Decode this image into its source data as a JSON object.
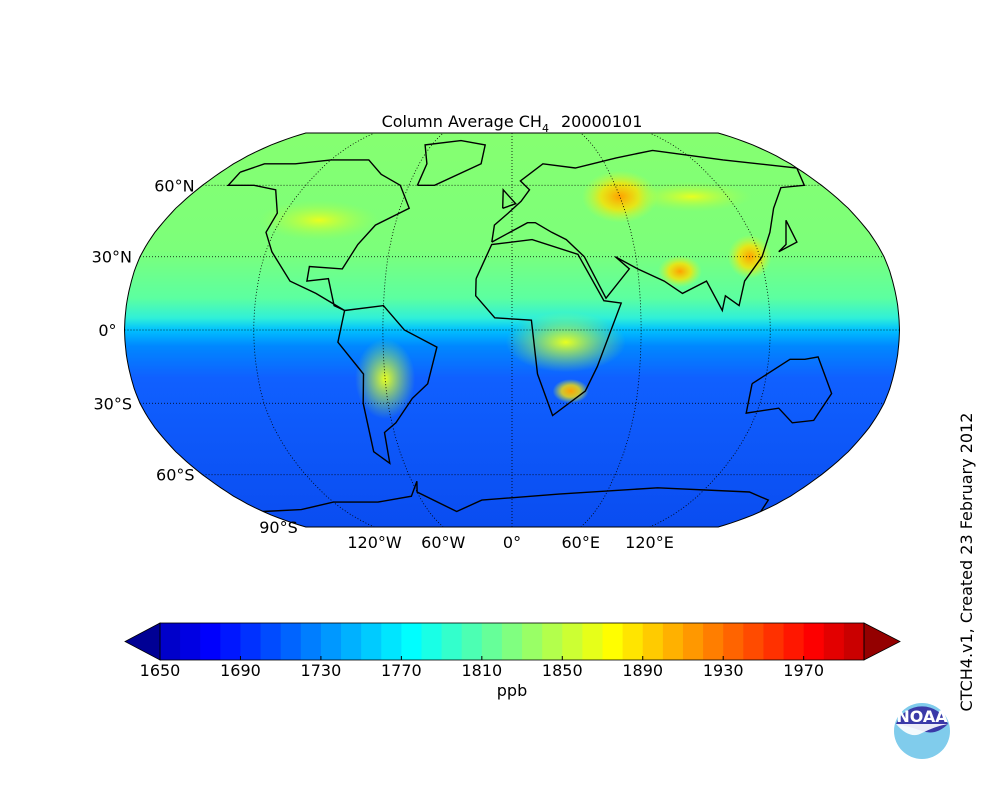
{
  "map": {
    "title": {
      "text": "Column Average CH",
      "subscript": "4",
      "date": "20000101"
    },
    "projection": "robinson",
    "lat_ticks": [
      {
        "value": 60,
        "label": "60°N"
      },
      {
        "value": 30,
        "label": "30°N"
      },
      {
        "value": 0,
        "label": "0°"
      },
      {
        "value": -30,
        "label": "30°S"
      },
      {
        "value": -60,
        "label": "60°S"
      },
      {
        "value": -90,
        "label": "90°S"
      }
    ],
    "lon_ticks": [
      {
        "value": -120,
        "label": "120°W"
      },
      {
        "value": -60,
        "label": "60°W"
      },
      {
        "value": 0,
        "label": "0°"
      },
      {
        "value": 60,
        "label": "60°E"
      },
      {
        "value": 120,
        "label": "120°E"
      }
    ],
    "colorbar": {
      "colormap": "jet",
      "lim": [
        1650,
        2000
      ],
      "ticks": [
        1650,
        1690,
        1730,
        1770,
        1810,
        1850,
        1890,
        1930,
        1970
      ],
      "label": "ppb"
    },
    "credit": "CTCH4.v1,  Created 23 February 2012",
    "logo": "NOAA"
  }
}
